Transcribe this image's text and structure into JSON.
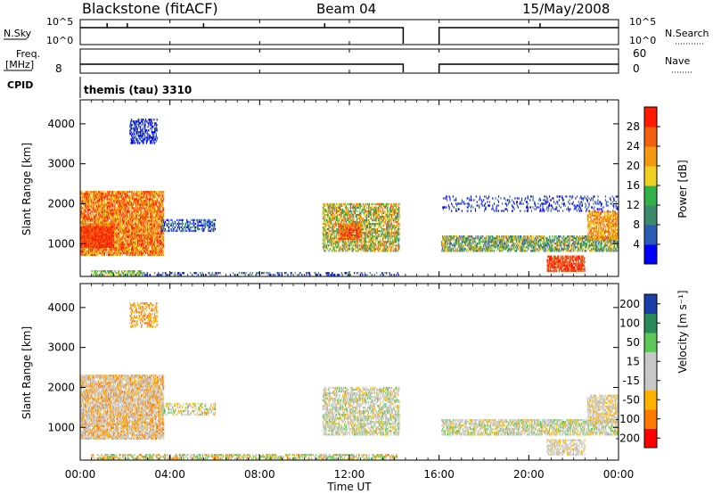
{
  "header": {
    "station": "Blackstone (fitACF)",
    "beam": "Beam 04",
    "date": "15/May/2008"
  },
  "status_panels": {
    "left_top_label": "N.Sky",
    "left_top_ticks": [
      "10^5",
      "10^0"
    ],
    "right_top_label": "N.Search",
    "right_top_ticks": [
      "10^5",
      "10^0"
    ],
    "left_mid_label_1": "Freq.",
    "left_mid_label_2": "[MHz]",
    "left_mid_tick": "8",
    "right_mid_label": "Nave",
    "right_mid_ticks": [
      "60",
      "0"
    ],
    "cpid_label": "CPID",
    "cpid_value": "themis (tau) 3310"
  },
  "colors": {
    "power": [
      "#0000ff",
      "#2a5bb5",
      "#3d8a6a",
      "#32b04a",
      "#f0d020",
      "#f59a10",
      "#f26010",
      "#ff1a00"
    ],
    "velocity": [
      "#ff0000",
      "#ff7a00",
      "#ffb300",
      "#c8c8c8",
      "#c8c8c8",
      "#5ec85a",
      "#2a8a5a",
      "#1a3fa8"
    ]
  },
  "chart_data": [
    {
      "type": "heatmap",
      "name": "power",
      "xlabel": "",
      "ylabel": "Slant Range [km]",
      "y_ticks": [
        1000,
        2000,
        3000,
        4000
      ],
      "ylim": [
        180,
        4600
      ],
      "xlim_hours": [
        0,
        24
      ],
      "colorbar_label": "Power [dB]",
      "colorbar_ticks": [
        "4",
        "8",
        "12",
        "16",
        "20",
        "24",
        "28"
      ],
      "data_gap_hours": [
        14.4,
        16.0
      ],
      "regions": [
        {
          "t0": 0.0,
          "t1": 3.7,
          "r0": 700,
          "r1": 2300,
          "levels": [
            5,
            6,
            7,
            8
          ],
          "density": 0.8
        },
        {
          "t0": 0.0,
          "t1": 1.5,
          "r0": 900,
          "r1": 1400,
          "levels": [
            7,
            8
          ],
          "density": 0.95
        },
        {
          "t0": 2.2,
          "t1": 3.4,
          "r0": 3500,
          "r1": 4100,
          "levels": [
            1,
            2
          ],
          "density": 0.5
        },
        {
          "t0": 3.6,
          "t1": 6.0,
          "r0": 1300,
          "r1": 1600,
          "levels": [
            1,
            2,
            3
          ],
          "density": 0.45
        },
        {
          "t0": 0.5,
          "t1": 2.8,
          "r0": 200,
          "r1": 300,
          "levels": [
            3,
            4,
            5
          ],
          "density": 0.6
        },
        {
          "t0": 2.8,
          "t1": 14.2,
          "r0": 200,
          "r1": 250,
          "levels": [
            1,
            2,
            3
          ],
          "density": 0.25
        },
        {
          "t0": 10.8,
          "t1": 14.2,
          "r0": 800,
          "r1": 2000,
          "levels": [
            3,
            4,
            5,
            6,
            7
          ],
          "density": 0.6
        },
        {
          "t0": 11.5,
          "t1": 12.5,
          "r0": 1100,
          "r1": 1500,
          "levels": [
            6,
            7,
            8
          ],
          "density": 0.7
        },
        {
          "t0": 16.1,
          "t1": 24.0,
          "r0": 800,
          "r1": 1200,
          "levels": [
            2,
            3,
            4,
            5,
            6
          ],
          "density": 0.65
        },
        {
          "t0": 20.8,
          "t1": 22.5,
          "r0": 300,
          "r1": 700,
          "levels": [
            7,
            8
          ],
          "density": 0.7
        },
        {
          "t0": 22.6,
          "t1": 24.0,
          "r0": 1100,
          "r1": 1800,
          "levels": [
            5,
            6,
            7
          ],
          "density": 0.7
        },
        {
          "t0": 16.1,
          "t1": 24.0,
          "r0": 1800,
          "r1": 2200,
          "levels": [
            1,
            2
          ],
          "density": 0.18
        }
      ]
    },
    {
      "type": "heatmap",
      "name": "velocity",
      "xlabel": "Time UT",
      "ylabel": "Slant Range [km]",
      "x_ticks": [
        "00:00",
        "04:00",
        "08:00",
        "12:00",
        "16:00",
        "20:00",
        "00:00"
      ],
      "y_ticks": [
        1000,
        2000,
        3000,
        4000
      ],
      "ylim": [
        180,
        4600
      ],
      "xlim_hours": [
        0,
        24
      ],
      "colorbar_label": "Velocity [m s⁻¹]",
      "colorbar_ticks": [
        "-200",
        "-100",
        "-50",
        "-15",
        "15",
        "50",
        "100",
        "200"
      ],
      "data_gap_hours": [
        14.4,
        16.0
      ],
      "regions": [
        {
          "t0": 0.0,
          "t1": 3.7,
          "r0": 700,
          "r1": 2300,
          "levels": [
            4,
            4,
            4,
            3,
            2
          ],
          "density": 0.75
        },
        {
          "t0": 2.2,
          "t1": 3.4,
          "r0": 3500,
          "r1": 4100,
          "levels": [
            3,
            2
          ],
          "density": 0.35
        },
        {
          "t0": 3.6,
          "t1": 6.0,
          "r0": 1300,
          "r1": 1600,
          "levels": [
            3,
            4,
            6
          ],
          "density": 0.4
        },
        {
          "t0": 0.5,
          "t1": 14.2,
          "r0": 200,
          "r1": 300,
          "levels": [
            6,
            6,
            3,
            2,
            4
          ],
          "density": 0.45
        },
        {
          "t0": 10.8,
          "t1": 14.2,
          "r0": 800,
          "r1": 2000,
          "levels": [
            4,
            4,
            4,
            6,
            3
          ],
          "density": 0.55
        },
        {
          "t0": 16.1,
          "t1": 24.0,
          "r0": 800,
          "r1": 1200,
          "levels": [
            4,
            4,
            4,
            3,
            6
          ],
          "density": 0.6
        },
        {
          "t0": 20.8,
          "t1": 22.5,
          "r0": 300,
          "r1": 700,
          "levels": [
            4,
            4,
            3
          ],
          "density": 0.5
        },
        {
          "t0": 22.6,
          "t1": 24.0,
          "r0": 1100,
          "r1": 1800,
          "levels": [
            4,
            4,
            3
          ],
          "density": 0.6
        }
      ]
    }
  ]
}
